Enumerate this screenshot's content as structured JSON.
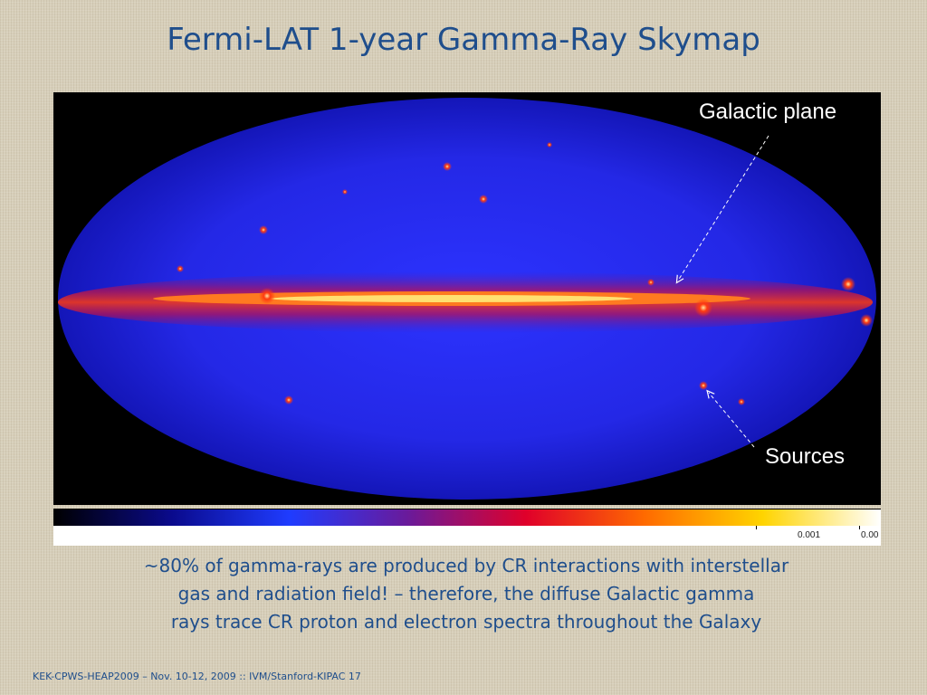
{
  "slide": {
    "title": "Fermi-LAT 1-year Gamma-Ray Skymap",
    "annotations": {
      "galactic_plane": "Galactic plane",
      "sources": "Sources"
    },
    "colorbar": {
      "tick_labels": [
        "0.001",
        "0.00"
      ],
      "colors": [
        "#000000",
        "#0a0a8c",
        "#1f3cff",
        "#6a1a9a",
        "#e0002a",
        "#ff6a00",
        "#ffd400",
        "#ffffff"
      ]
    },
    "description": [
      "~80% of gamma-rays are produced by CR interactions with interstellar",
      "gas and radiation field! – therefore, the diffuse Galactic gamma",
      "rays trace CR proton and electron spectra throughout the Galaxy"
    ],
    "footer": "KEK-CPWS-HEAP2009 – Nov. 10-12, 2009 :: IVM/Stanford-KIPAC  17",
    "colors": {
      "title": "#1f4e8c",
      "map_background": "#000000",
      "sky_blue": "#2a2cf0",
      "plane_red": "#ff2a1a"
    }
  }
}
